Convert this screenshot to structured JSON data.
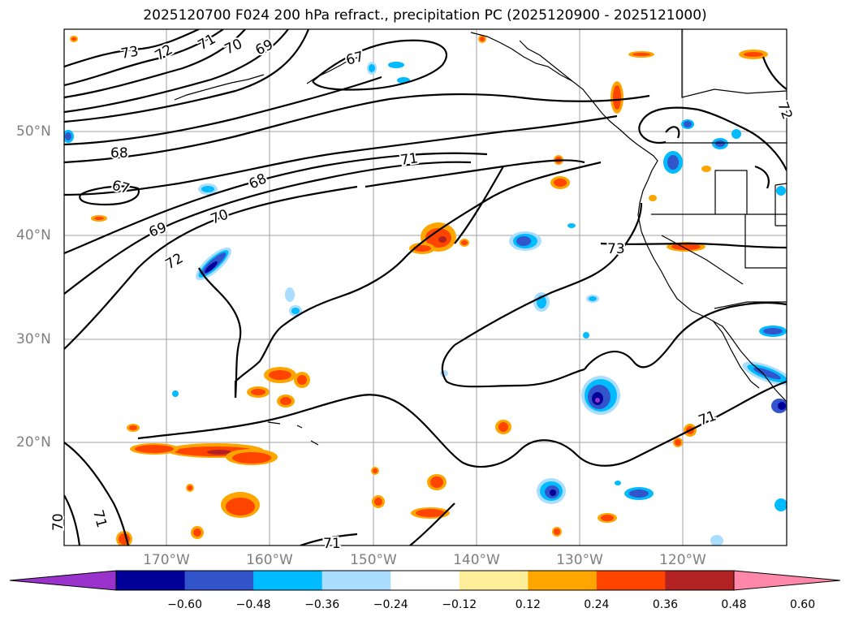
{
  "title": "2025120700 F024 200 hPa refract., precipitation PC (2025120900 - 2025121000)",
  "map": {
    "lat_labels": [
      "50°N",
      "40°N",
      "30°N",
      "20°N"
    ],
    "lon_labels": [
      "170°W",
      "160°W",
      "150°W",
      "140°W",
      "130°W",
      "120°W"
    ],
    "contour_labels": [
      "73",
      "72",
      "71",
      "70",
      "69",
      "67",
      "68",
      "71",
      "67",
      "68",
      "70",
      "69",
      "72",
      "73",
      "71",
      "71",
      "70",
      "71",
      "72"
    ],
    "contour_color": "#000000",
    "gridline_color": "#a0a0a0",
    "background_color": "#ffffff"
  },
  "colorbar": {
    "colors": [
      "#9933cc",
      "#000099",
      "#3355cc",
      "#00bbff",
      "#aaddff",
      "#ffffff",
      "#ffee99",
      "#ffa500",
      "#ff4400",
      "#b22222",
      "#ff88aa"
    ],
    "tick_labels": [
      "−0.60",
      "−0.48",
      "−0.36",
      "−0.24",
      "−0.12",
      "0.12",
      "0.24",
      "0.36",
      "0.48",
      "0.60"
    ]
  }
}
